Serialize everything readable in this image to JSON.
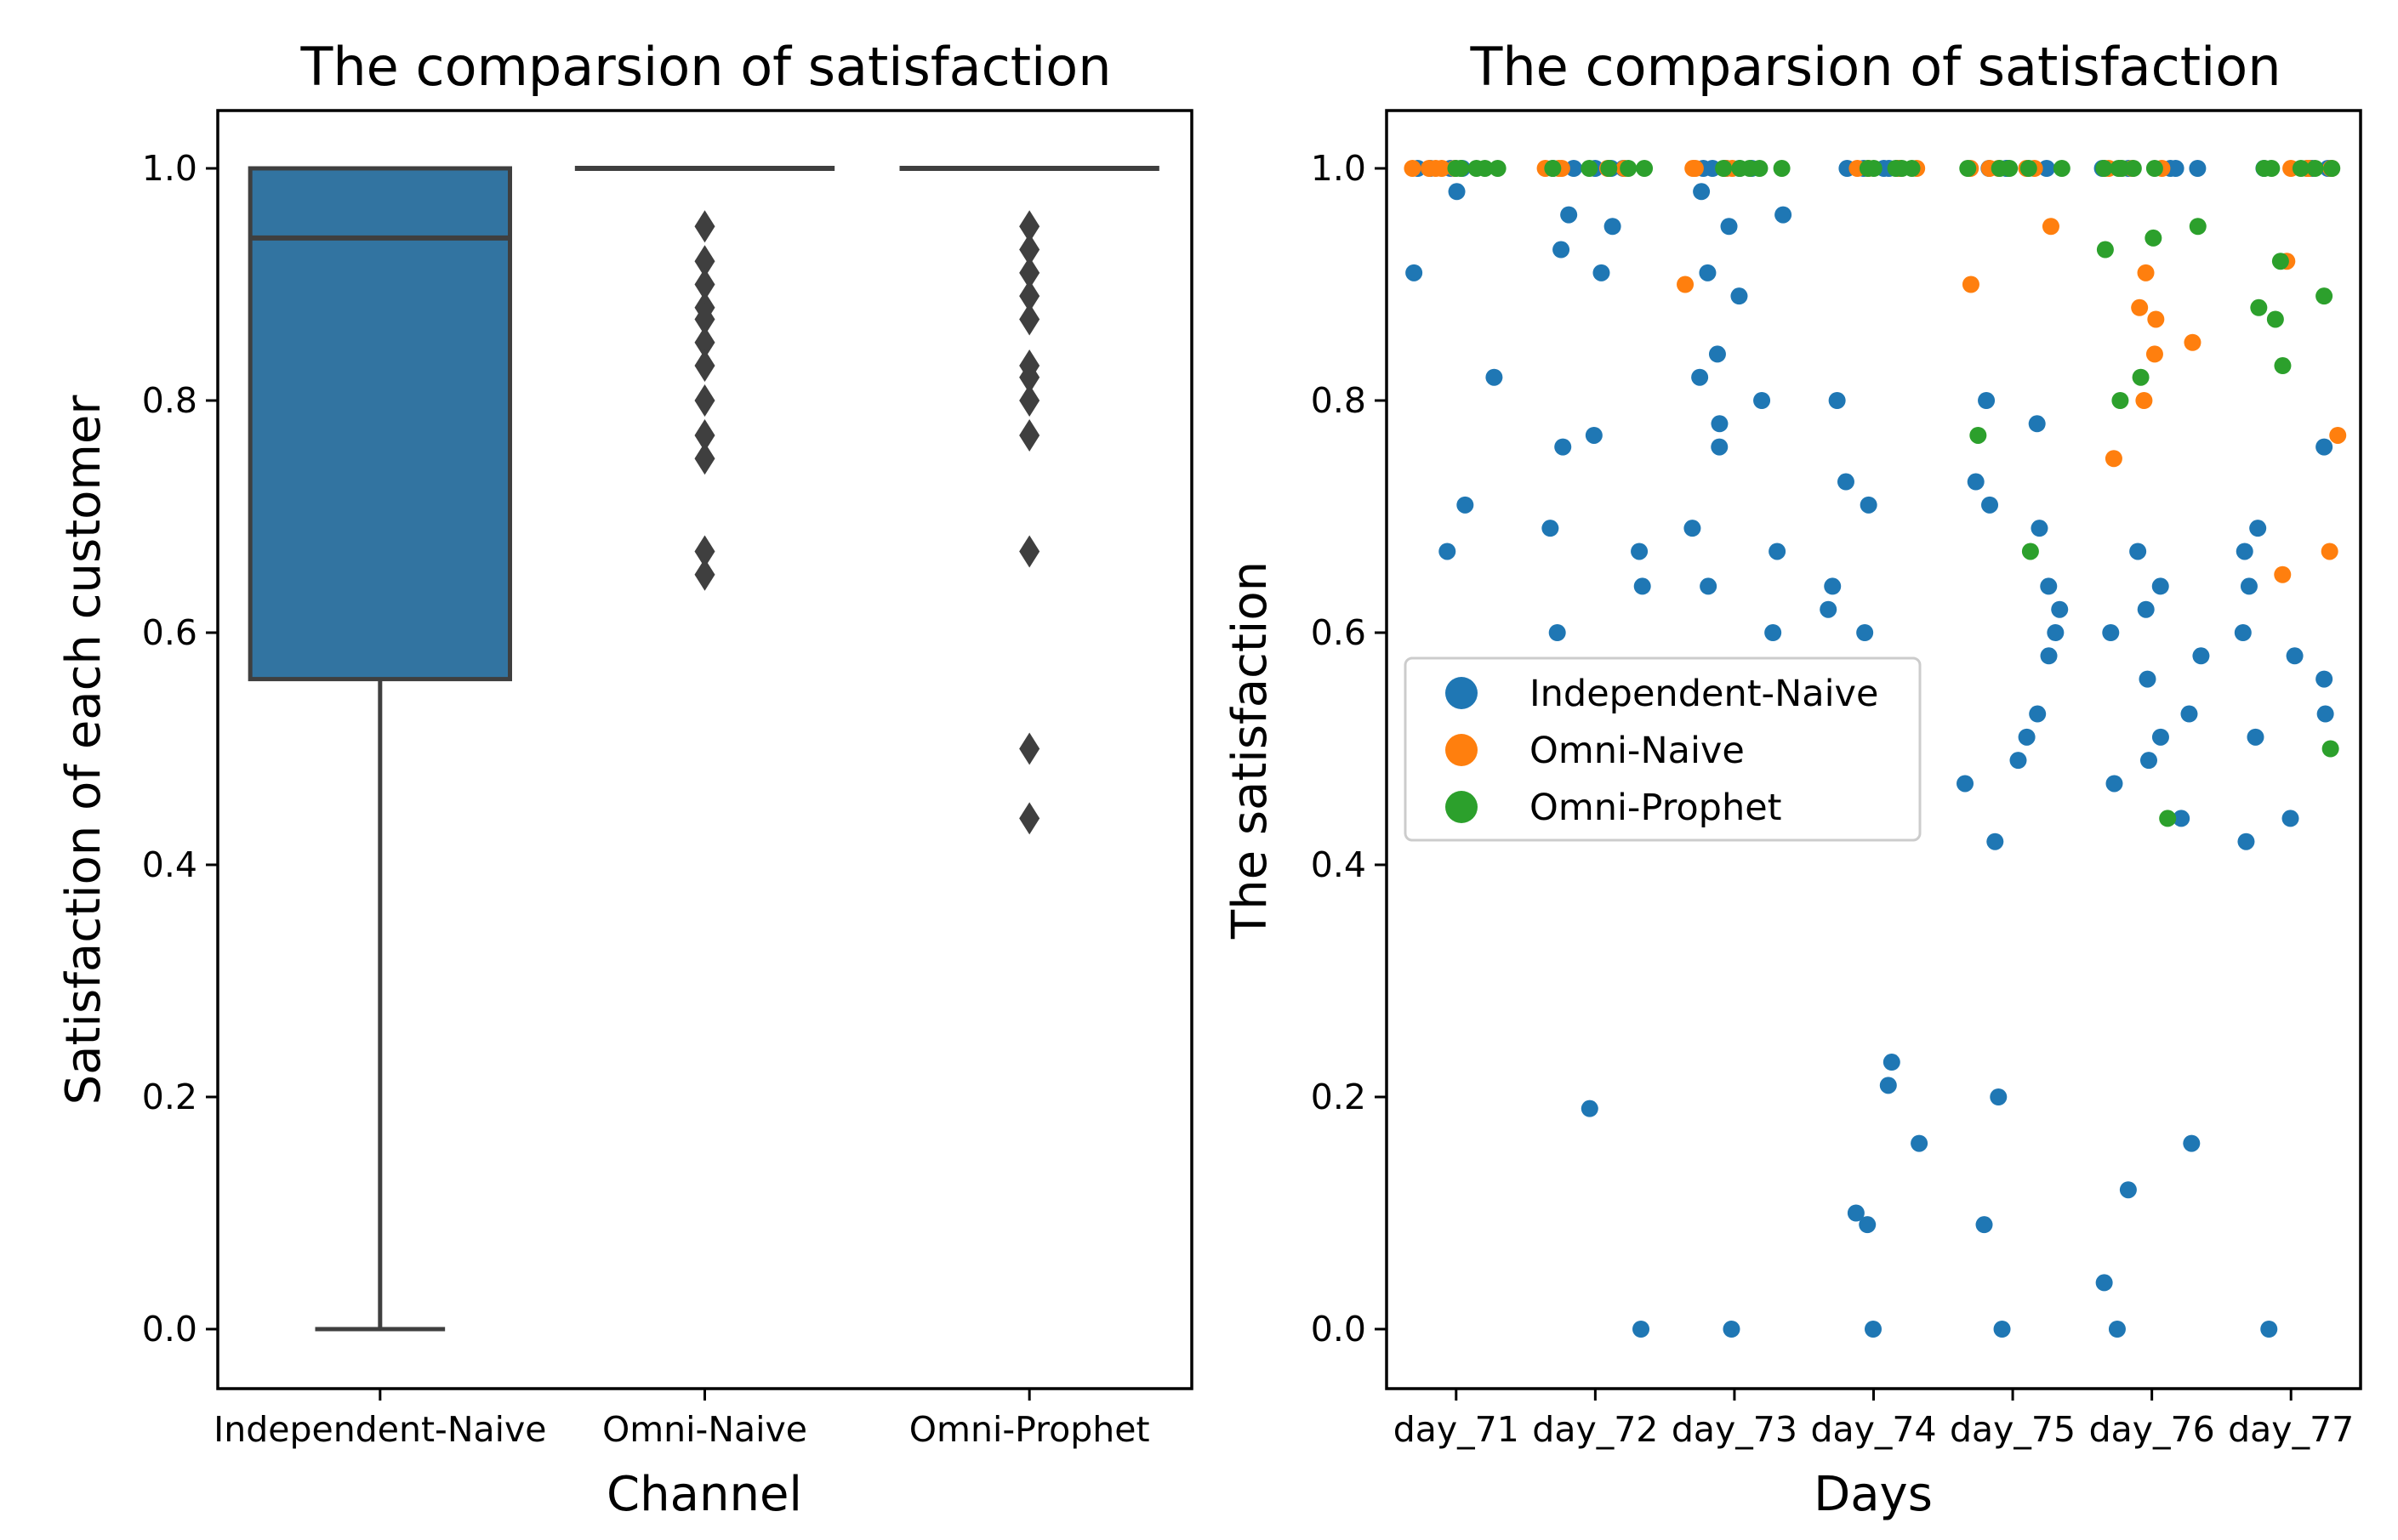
{
  "chart_data": [
    {
      "type": "box",
      "title": "The comparsion of satisfaction",
      "xlabel": "Channel",
      "ylabel": "Satisfaction of each customer",
      "ylim": [
        -0.05,
        1.05
      ],
      "yticks": [
        0.0,
        0.2,
        0.4,
        0.6,
        0.8,
        1.0
      ],
      "ytick_labels": [
        "0.0",
        "0.2",
        "0.4",
        "0.6",
        "0.8",
        "1.0"
      ],
      "categories": [
        "Independent-Naive",
        "Omni-Naive",
        "Omni-Prophet"
      ],
      "boxes": [
        {
          "name": "Independent-Naive",
          "min": 0.0,
          "q1": 0.56,
          "median": 0.94,
          "q3": 1.0,
          "max": 1.0,
          "outliers": []
        },
        {
          "name": "Omni-Naive",
          "min": 1.0,
          "q1": 1.0,
          "median": 1.0,
          "q3": 1.0,
          "max": 1.0,
          "outliers": [
            0.95,
            0.92,
            0.9,
            0.88,
            0.87,
            0.85,
            0.83,
            0.8,
            0.77,
            0.75,
            0.67,
            0.65
          ]
        },
        {
          "name": "Omni-Prophet",
          "min": 1.0,
          "q1": 1.0,
          "median": 1.0,
          "q3": 1.0,
          "max": 1.0,
          "outliers": [
            0.95,
            0.93,
            0.91,
            0.89,
            0.87,
            0.83,
            0.82,
            0.8,
            0.77,
            0.67,
            0.5,
            0.44
          ]
        }
      ],
      "box_color": "#3274a1",
      "line_color": "#3f3f3f"
    },
    {
      "type": "scatter",
      "title": "The comparsion of satisfaction",
      "xlabel": "Days",
      "ylabel": "The satisfaction",
      "ylim": [
        -0.05,
        1.05
      ],
      "yticks": [
        0.0,
        0.2,
        0.4,
        0.6,
        0.8,
        1.0
      ],
      "ytick_labels": [
        "0.0",
        "0.2",
        "0.4",
        "0.6",
        "0.8",
        "1.0"
      ],
      "categories": [
        "day_71",
        "day_72",
        "day_73",
        "day_74",
        "day_75",
        "day_76",
        "day_77"
      ],
      "legend_position": "center-left",
      "series": [
        {
          "name": "Independent-Naive",
          "color": "#1f77b4",
          "values": [
            [
              1.0,
              0.98,
              0.91,
              0.82,
              0.71,
              0.67
            ],
            [
              1.0,
              0.96,
              0.95,
              0.93,
              0.91,
              0.77,
              0.76,
              0.69,
              0.67,
              0.64,
              0.6,
              0.19,
              0.0
            ],
            [
              1.0,
              0.98,
              0.96,
              0.95,
              0.91,
              0.89,
              0.84,
              0.82,
              0.8,
              0.78,
              0.76,
              0.69,
              0.67,
              0.64,
              0.6,
              0.0
            ],
            [
              1.0,
              0.8,
              0.73,
              0.71,
              0.64,
              0.62,
              0.6,
              0.23,
              0.21,
              0.16,
              0.1,
              0.09,
              0.0
            ],
            [
              1.0,
              0.8,
              0.78,
              0.73,
              0.71,
              0.69,
              0.64,
              0.62,
              0.6,
              0.58,
              0.53,
              0.51,
              0.49,
              0.47,
              0.42,
              0.2,
              0.09,
              0.0
            ],
            [
              1.0,
              0.67,
              0.64,
              0.62,
              0.6,
              0.58,
              0.56,
              0.53,
              0.51,
              0.49,
              0.47,
              0.44,
              0.16,
              0.12,
              0.04,
              0.0
            ],
            [
              1.0,
              0.76,
              0.69,
              0.67,
              0.64,
              0.6,
              0.58,
              0.56,
              0.53,
              0.51,
              0.44,
              0.42,
              0.0
            ]
          ]
        },
        {
          "name": "Omni-Naive",
          "color": "#ff7f0e",
          "values": [
            [
              1.0
            ],
            [
              1.0
            ],
            [
              1.0,
              0.9
            ],
            [
              1.0
            ],
            [
              1.0,
              0.95,
              0.9
            ],
            [
              1.0,
              0.91,
              0.88,
              0.87,
              0.85,
              0.84,
              0.8,
              0.75
            ],
            [
              1.0,
              0.92,
              0.77,
              0.67,
              0.65
            ]
          ]
        },
        {
          "name": "Omni-Prophet",
          "color": "#2ca02c",
          "values": [
            [
              1.0
            ],
            [
              1.0
            ],
            [
              1.0
            ],
            [
              1.0
            ],
            [
              1.0,
              0.77,
              0.67
            ],
            [
              1.0,
              0.95,
              0.94,
              0.93,
              0.82,
              0.8,
              0.44
            ],
            [
              1.0,
              0.92,
              0.89,
              0.88,
              0.87,
              0.83,
              0.5
            ]
          ]
        }
      ]
    }
  ]
}
